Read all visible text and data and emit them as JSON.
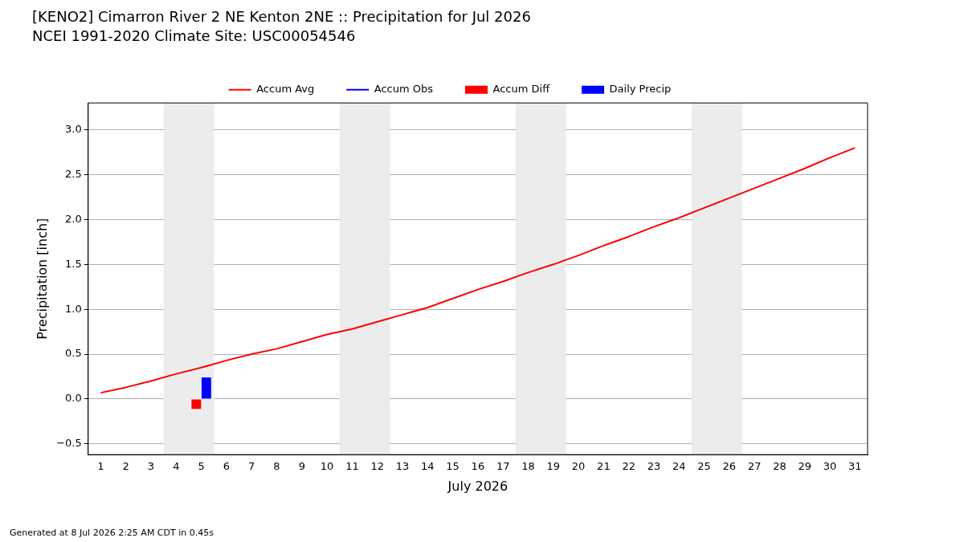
{
  "chart_data": {
    "type": "line",
    "title": "[KENO2] Cimarron River 2 NE Kenton 2NE :: Precipitation for Jul 2026",
    "subtitle": "NCEI 1991-2020 Climate Site: USC00054546",
    "xlabel": "July 2026",
    "ylabel": "Precipitation [inch]",
    "x": [
      1,
      2,
      3,
      4,
      5,
      6,
      7,
      8,
      9,
      10,
      11,
      12,
      13,
      14,
      15,
      16,
      17,
      18,
      19,
      20,
      21,
      22,
      23,
      24,
      25,
      26,
      27,
      28,
      29,
      30,
      31
    ],
    "series": [
      {
        "name": "Accum Avg",
        "color": "#ff0000",
        "values": [
          0.07,
          0.13,
          0.2,
          0.28,
          0.35,
          0.43,
          0.5,
          0.56,
          0.64,
          0.72,
          0.78,
          0.86,
          0.94,
          1.02,
          1.12,
          1.22,
          1.31,
          1.41,
          1.5,
          1.6,
          1.71,
          1.81,
          1.92,
          2.02,
          2.13,
          2.24,
          2.35,
          2.46,
          2.57,
          2.69,
          2.8
        ]
      },
      {
        "name": "Accum Obs",
        "color": "#0000ff",
        "values": [
          null,
          null,
          null,
          null,
          null,
          null,
          null,
          null,
          null,
          null,
          null,
          null,
          null,
          null,
          null,
          null,
          null,
          null,
          null,
          null,
          null,
          null,
          null,
          null,
          null,
          null,
          null,
          null,
          null,
          null,
          null
        ]
      },
      {
        "name": "Accum Diff",
        "type": "bar",
        "color": "#ff0000",
        "values": [
          null,
          null,
          null,
          null,
          -0.11,
          null,
          null,
          null,
          null,
          null,
          null,
          null,
          null,
          null,
          null,
          null,
          null,
          null,
          null,
          null,
          null,
          null,
          null,
          null,
          null,
          null,
          null,
          null,
          null,
          null,
          null
        ]
      },
      {
        "name": "Daily Precip",
        "type": "bar",
        "color": "#0000ff",
        "values": [
          null,
          null,
          null,
          null,
          0.24,
          null,
          null,
          null,
          null,
          null,
          null,
          null,
          null,
          null,
          null,
          null,
          null,
          null,
          null,
          null,
          null,
          null,
          null,
          null,
          null,
          null,
          null,
          null,
          null,
          null,
          null
        ]
      }
    ],
    "xlim": [
      0.5,
      31.5
    ],
    "xticks": [
      1,
      2,
      3,
      4,
      5,
      6,
      7,
      8,
      9,
      10,
      11,
      12,
      13,
      14,
      15,
      16,
      17,
      18,
      19,
      20,
      21,
      22,
      23,
      24,
      25,
      26,
      27,
      28,
      29,
      30,
      31
    ],
    "ylim": [
      -0.62,
      3.3
    ],
    "yticks": [
      {
        "value": -0.5,
        "label": "−0.5"
      },
      {
        "value": 0,
        "label": "0.0"
      },
      {
        "value": 0.5,
        "label": "0.5"
      },
      {
        "value": 1,
        "label": "1.0"
      },
      {
        "value": 1.5,
        "label": "1.5"
      },
      {
        "value": 2,
        "label": "2.0"
      },
      {
        "value": 2.5,
        "label": "2.5"
      },
      {
        "value": 3,
        "label": "3.0"
      }
    ],
    "bands": [
      {
        "axis": "x",
        "from": 3.5,
        "to": 5.5,
        "color": "#ececec"
      },
      {
        "axis": "x",
        "from": 10.5,
        "to": 12.5,
        "color": "#ececec"
      },
      {
        "axis": "x",
        "from": 17.5,
        "to": 19.5,
        "color": "#ececec"
      },
      {
        "axis": "x",
        "from": 24.5,
        "to": 26.5,
        "color": "#ececec"
      }
    ],
    "grid": "y",
    "legend": "top",
    "marker": "none",
    "annotations": [
      "Generated at 8 Jul 2026 2:25 AM CDT in 0.45s"
    ]
  }
}
